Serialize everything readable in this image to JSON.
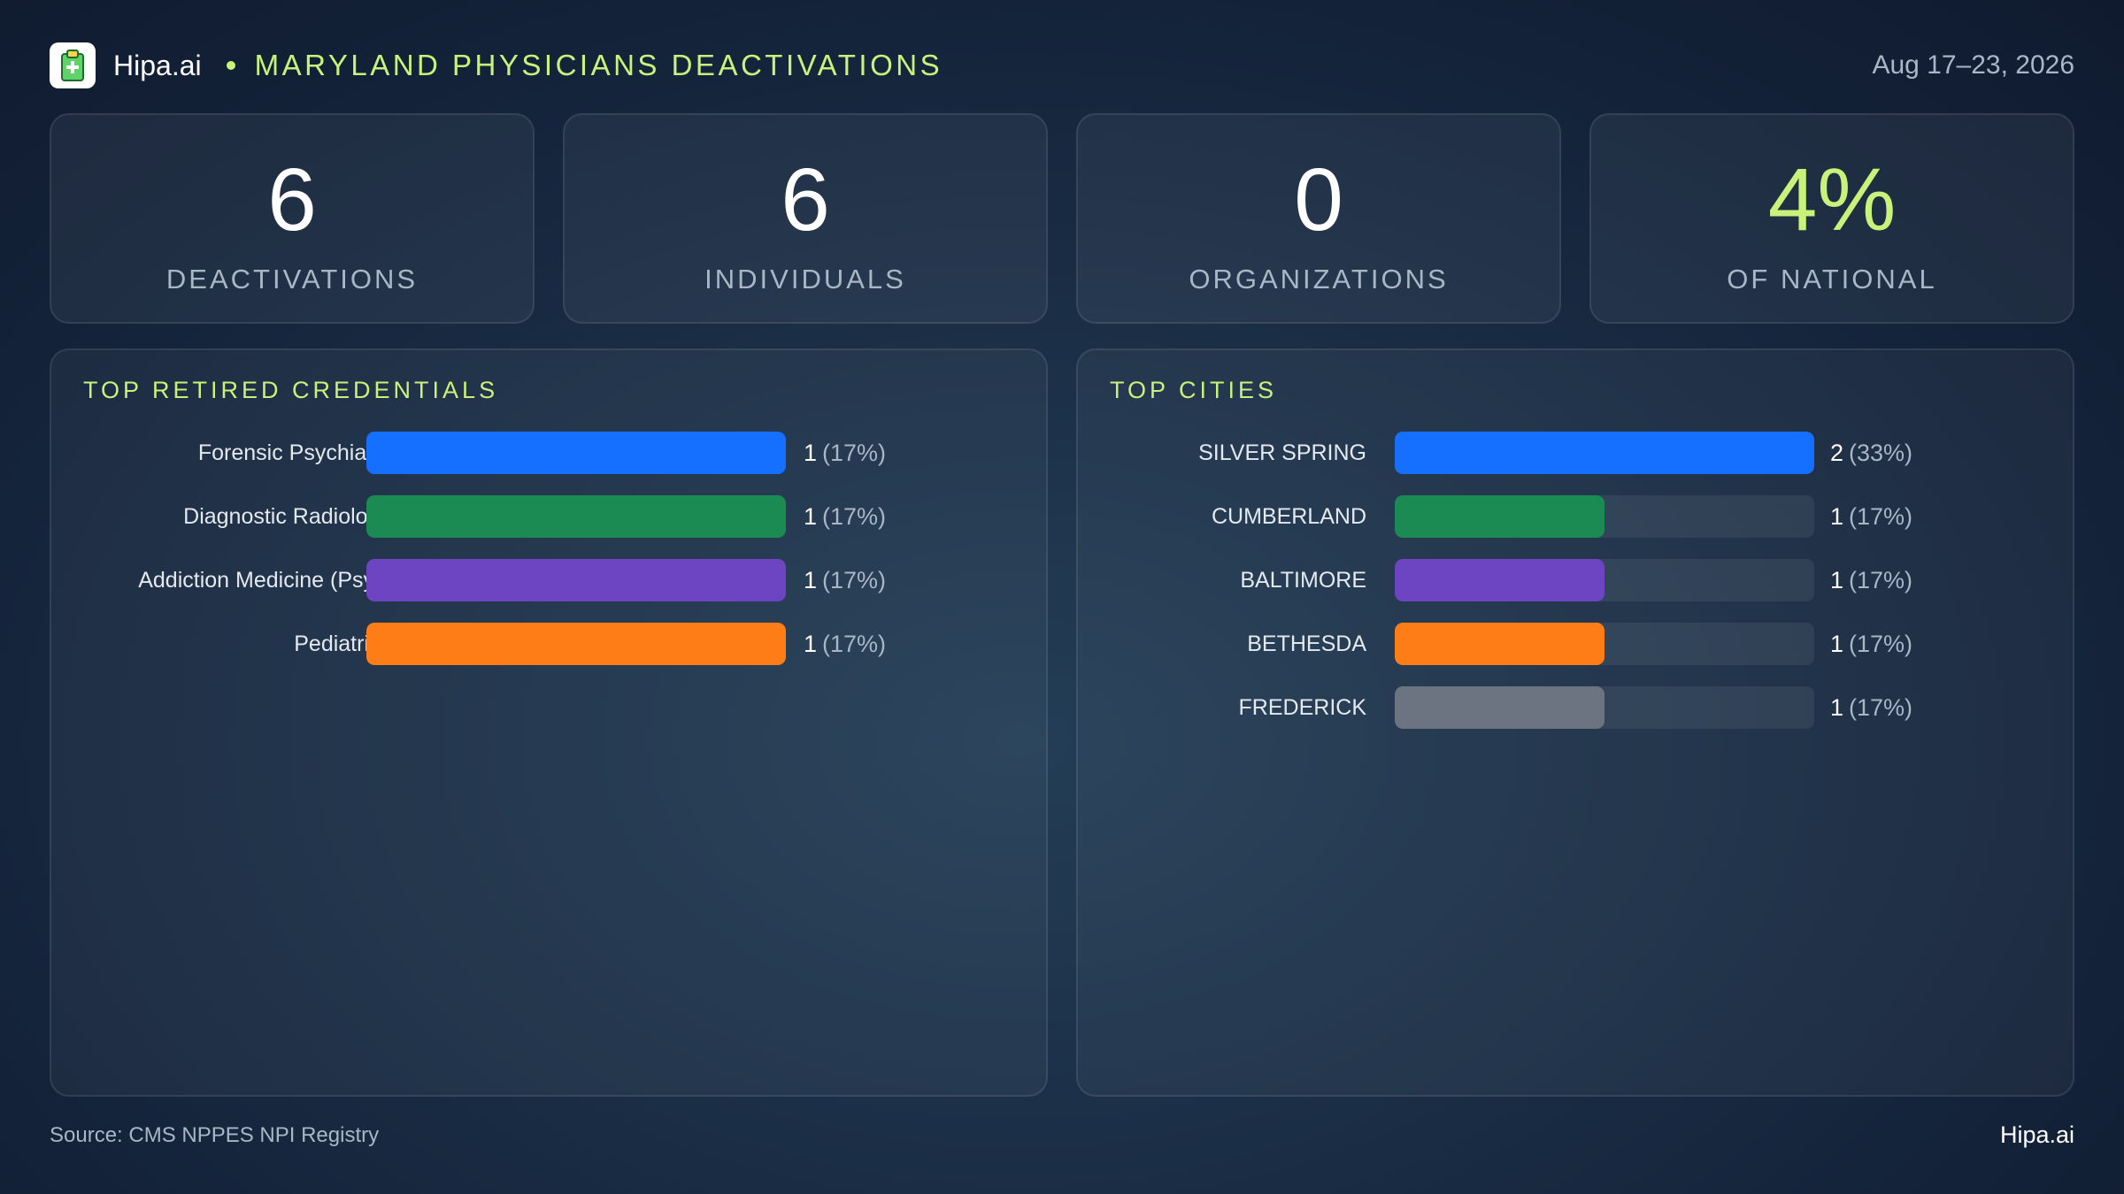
{
  "header": {
    "brand": "Hipa.ai",
    "title": "MARYLAND PHYSICIANS DEACTIVATIONS",
    "date": "Aug 17–23, 2026",
    "logo_icon": "clipboard-icon",
    "accent_color": "#c9f27a"
  },
  "kpis": [
    {
      "value": "6",
      "label": "DEACTIVATIONS"
    },
    {
      "value": "6",
      "label": "INDIVIDUALS"
    },
    {
      "value": "0",
      "label": "ORGANIZATIONS"
    },
    {
      "value": "4%",
      "label": "OF NATIONAL"
    }
  ],
  "chart_data": [
    {
      "type": "bar",
      "orientation": "horizontal",
      "title": "TOP RETIRED CREDENTIALS",
      "categories": [
        "Forensic Psychiatry",
        "Diagnostic Radiology",
        "Addiction Medicine (Psy...",
        "Pediatrics"
      ],
      "values": [
        1,
        1,
        1,
        1
      ],
      "value_labels": [
        "1",
        "1",
        "1",
        "1"
      ],
      "percent_labels": [
        "(17%)",
        "(17%)",
        "(17%)",
        "(17%)"
      ],
      "colors": [
        "#1570ff",
        "#1b8a53",
        "#6d44c2",
        "#ff7d17"
      ],
      "xlim": [
        0,
        1
      ],
      "grid": false,
      "legend": "none"
    },
    {
      "type": "bar",
      "orientation": "horizontal",
      "title": "TOP CITIES",
      "categories": [
        "SILVER SPRING",
        "CUMBERLAND",
        "BALTIMORE",
        "BETHESDA",
        "FREDERICK"
      ],
      "values": [
        2,
        1,
        1,
        1,
        1
      ],
      "value_labels": [
        "2",
        "1",
        "1",
        "1",
        "1"
      ],
      "percent_labels": [
        "(33%)",
        "(17%)",
        "(17%)",
        "(17%)",
        "(17%)"
      ],
      "colors": [
        "#1570ff",
        "#1b8a53",
        "#6d44c2",
        "#ff7d17",
        "#6b7480"
      ],
      "xlim": [
        0,
        2
      ],
      "grid": false,
      "legend": "none"
    }
  ],
  "footer": {
    "source": "Source: CMS NPPES NPI Registry",
    "brand": "Hipa.ai"
  }
}
